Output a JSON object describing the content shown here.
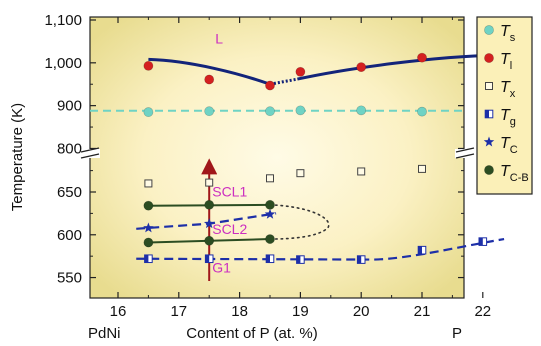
{
  "chart_data": {
    "type": "scatter",
    "ylabel": "Temperature (K)",
    "xlabel": "Content of P (at. %)",
    "x_left_label": "PdNi",
    "x_right_label": "P",
    "x_ticks": [
      16,
      17,
      18,
      19,
      20,
      21,
      22
    ],
    "xlim": [
      16,
      22.5
    ],
    "y_axis_break": true,
    "y_upper_ticks": [
      "1,100",
      "1,000",
      "900",
      "800"
    ],
    "y_lower_ticks": [
      "650",
      "600",
      "550"
    ],
    "ylim_upper": [
      790,
      1100
    ],
    "ylim_lower": [
      535,
      690
    ],
    "legend_position": "right, outside plot",
    "background": "radial yellow gradient",
    "series": [
      {
        "name": "T_s",
        "label_main": "T",
        "label_sub": "s",
        "marker": "circle",
        "color": "#6fd3c4",
        "x": [
          16.5,
          17.5,
          18.5,
          19,
          20,
          21,
          22
        ],
        "y": [
          885,
          887,
          887,
          889,
          889,
          886,
          886
        ],
        "fit": "dashed horizontal line",
        "fit_y": 888
      },
      {
        "name": "T_l",
        "label_main": "T",
        "label_sub": "l",
        "marker": "circle",
        "color": "#d42020",
        "x": [
          16.5,
          17.5,
          18.5,
          19,
          20,
          21,
          22
        ],
        "y": [
          993,
          961,
          947,
          979,
          990,
          1012,
          1008
        ],
        "fit": "solid curve with eutectic dip near 18.5"
      },
      {
        "name": "T_x",
        "label_main": "T",
        "label_sub": "x",
        "marker": "open-square",
        "color": "#444444",
        "x": [
          16.5,
          17.5,
          18.5,
          19,
          20,
          21,
          22
        ],
        "y": [
          660,
          661,
          666,
          672,
          674,
          677,
          679
        ]
      },
      {
        "name": "T_g",
        "label_main": "T",
        "label_sub": "g",
        "marker": "half-filled-square",
        "color": "#1d2fa8",
        "x": [
          16.5,
          17.5,
          18.5,
          19,
          20,
          21,
          22
        ],
        "y": [
          572,
          572,
          572,
          571,
          571,
          582,
          592
        ],
        "fit": "dashed line"
      },
      {
        "name": "T_C",
        "label_main": "T",
        "label_sub": "C",
        "marker": "star",
        "color": "#1d2fa8",
        "x": [
          16.5,
          17.5,
          18.5
        ],
        "y": [
          608,
          613,
          624
        ],
        "fit": "dashed line"
      },
      {
        "name": "T_C-B",
        "label_main": "T",
        "label_sub": "C-B",
        "marker": "circle",
        "color": "#2c4d22",
        "x": [
          16.5,
          17.5,
          18.5,
          16.5,
          17.5,
          18.5
        ],
        "y": [
          634,
          635,
          635,
          591,
          593,
          595
        ],
        "fit": "two solid branches joined by dotted curve"
      }
    ],
    "annotations": [
      {
        "text": "L",
        "x": 17.6,
        "y": 1045,
        "color": "#cc2fc0"
      },
      {
        "text": "SCL1",
        "x": 17.55,
        "y": 645,
        "color": "#cc2fc0"
      },
      {
        "text": "SCL2",
        "x": 17.55,
        "y": 601,
        "color": "#cc2fc0"
      },
      {
        "text": "G1",
        "x": 17.55,
        "y": 556,
        "color": "#cc2fc0"
      }
    ]
  }
}
